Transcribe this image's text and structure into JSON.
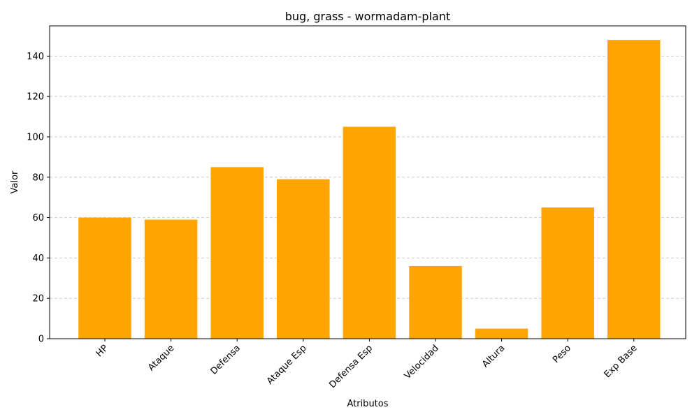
{
  "chart_data": {
    "type": "bar",
    "title": "bug, grass - wormadam-plant",
    "xlabel": "Atributos",
    "ylabel": "Valor",
    "categories": [
      "HP",
      "Ataque",
      "Defensa",
      "Ataque Esp",
      "Defensa Esp",
      "Velocidad",
      "Altura",
      "Peso",
      "Exp Base"
    ],
    "values": [
      60,
      59,
      85,
      79,
      105,
      36,
      5,
      65,
      148
    ],
    "ylim": [
      0,
      155
    ],
    "yticks": [
      0,
      20,
      40,
      60,
      80,
      100,
      120,
      140
    ],
    "grid": "y-dashed",
    "bar_color": "#FFA500",
    "xtick_rotation": 45
  }
}
